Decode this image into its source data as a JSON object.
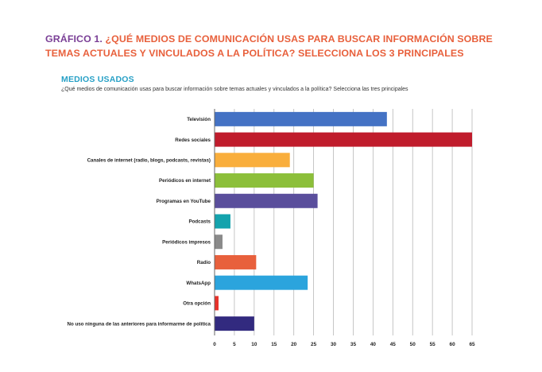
{
  "header": {
    "title_part1": "GRÁFICO 1.",
    "title_part2": "¿QUÉ MEDIOS DE COMUNICACIÓN USAS PARA BUSCAR INFORMACIÓN SOBRE TEMAS ACTUALES Y VINCULADOS A LA POLÍTICA? SELECCIONA LOS 3 PRINCIPALES"
  },
  "section": {
    "title": "MEDIOS USADOS",
    "subtitle": "¿Qué medios de comunicación usas para buscar información sobre temas actuales y vinculados a la política? Selecciona las tres principales"
  },
  "colors": {
    "title_purple": "#7a3f96",
    "title_orange": "#e8603c",
    "section_blue": "#27a0c6"
  },
  "chart_data": {
    "type": "bar",
    "orientation": "horizontal",
    "title": "MEDIOS USADOS",
    "xlabel": "",
    "ylabel": "",
    "xlim": [
      0,
      65
    ],
    "ticks": [
      0,
      5,
      10,
      15,
      20,
      25,
      30,
      35,
      40,
      45,
      50,
      55,
      60,
      65
    ],
    "grid": true,
    "categories": [
      "Televisión",
      "Redes sociales",
      "Canales de internet (radio, blogs, podcasts, revistas)",
      "Periódicos en internet",
      "Programas en YouTube",
      "Podcasts",
      "Periódicos impresos",
      "Radio",
      "WhatsApp",
      "Otra opción",
      "No uso ninguna de las anteriores para informarme de política"
    ],
    "values": [
      43.5,
      65,
      19,
      25,
      26,
      4,
      2,
      10.5,
      23.5,
      1,
      10
    ],
    "colors": [
      "#4472c4",
      "#c01c2c",
      "#f9ae3c",
      "#8cbf3a",
      "#5a4e9c",
      "#14a3ad",
      "#8a8a8a",
      "#e8603c",
      "#2ba4dd",
      "#e8322a",
      "#322a7f"
    ]
  }
}
